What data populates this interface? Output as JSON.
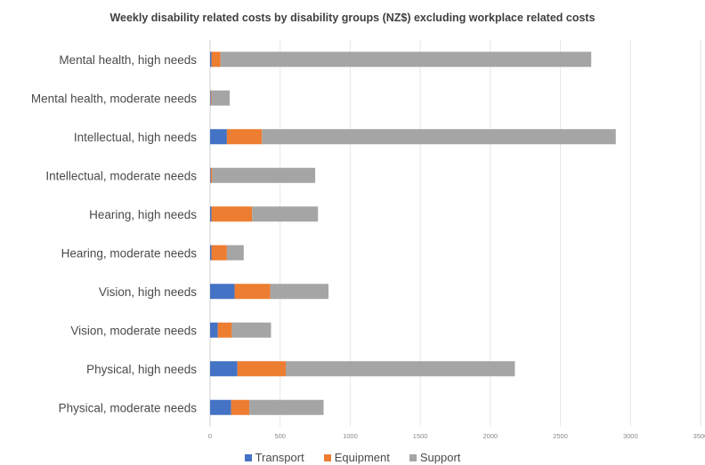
{
  "chart_data": {
    "type": "bar",
    "orientation": "horizontal",
    "stacked": true,
    "title": "Weekly disability related costs by disability groups (NZ$) excluding workplace related costs",
    "categories": [
      "Mental health, high needs",
      "Mental health, moderate needs",
      "Intellectual, high needs",
      "Intellectual, moderate needs",
      "Hearing, high needs",
      "Hearing, moderate needs",
      "Vision, high needs",
      "Vision, moderate needs",
      "Physical, high needs",
      "Physical, moderate needs"
    ],
    "series": [
      {
        "name": "Transport",
        "color": "#4472C4",
        "values": [
          10,
          5,
          120,
          5,
          10,
          10,
          175,
          55,
          195,
          150
        ]
      },
      {
        "name": "Equipment",
        "color": "#ED7D31",
        "values": [
          65,
          5,
          250,
          10,
          290,
          110,
          255,
          100,
          345,
          130
        ]
      },
      {
        "name": "Support",
        "color": "#A5A5A5",
        "values": [
          2645,
          130,
          2525,
          735,
          470,
          120,
          415,
          280,
          1635,
          530
        ]
      }
    ],
    "xlim": [
      0,
      3500
    ],
    "xticks": [
      "0",
      "500",
      "1000",
      "1500",
      "2000",
      "2500",
      "3000",
      "3500"
    ],
    "grid": true,
    "legend_position": "bottom"
  }
}
